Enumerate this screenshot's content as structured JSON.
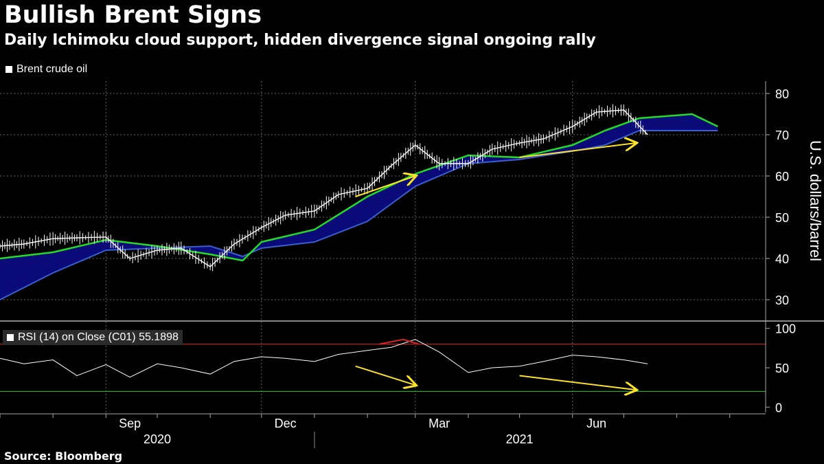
{
  "title": "Bullish Brent Signs",
  "subtitle": "Daily Ichimoku cloud support, hidden divergence signal ongoing rally",
  "source": "Source: Bloomberg",
  "legend_price": "Brent crude oil",
  "legend_rsi": "RSI (14)  on Close (C01) 55.1898",
  "colors": {
    "price": "#ffffff",
    "cloud": "#0a0a78",
    "cloud_edge": "#3a5fd0",
    "lead_line": "#22dd22",
    "arrow": "#ffe22a",
    "rsi_upper": "#dd2222",
    "rsi_lower": "#22cc22",
    "grid": "#666666"
  },
  "chart_data": [
    {
      "type": "line",
      "name": "price-panel",
      "ylabel": "U.S. dollars/barrel",
      "ylim": [
        25,
        83
      ],
      "yticks": [
        "30",
        "40",
        "50",
        "60",
        "70",
        "80"
      ],
      "xticks": [
        "Sep",
        "Dec",
        "Mar",
        "Jun"
      ],
      "year_labels": [
        "2020",
        "2021"
      ],
      "x": [
        "2020-07-01",
        "2020-07-15",
        "2020-08-01",
        "2020-08-15",
        "2020-09-01",
        "2020-09-15",
        "2020-10-01",
        "2020-10-15",
        "2020-11-01",
        "2020-11-15",
        "2020-12-01",
        "2020-12-15",
        "2021-01-01",
        "2021-01-15",
        "2021-02-01",
        "2021-02-15",
        "2021-03-01",
        "2021-03-15",
        "2021-04-01",
        "2021-04-15",
        "2021-05-01",
        "2021-05-15",
        "2021-06-01",
        "2021-06-15",
        "2021-07-01",
        "2021-07-15"
      ],
      "series": [
        {
          "name": "Brent crude oil",
          "values": [
            43.0,
            43.5,
            44.8,
            45.0,
            45.2,
            40.0,
            42.0,
            42.5,
            38.0,
            43.5,
            47.5,
            50.5,
            51.5,
            55.5,
            57.0,
            62.5,
            67.5,
            63.0,
            63.0,
            66.5,
            68.0,
            69.0,
            72.0,
            75.5,
            76.0,
            70.0
          ]
        }
      ],
      "cloud_lead_line": {
        "x": [
          "2020-07-01",
          "2020-08-01",
          "2020-09-01",
          "2020-10-01",
          "2020-11-01",
          "2020-11-20",
          "2020-12-01",
          "2021-01-01",
          "2021-02-01",
          "2021-03-01",
          "2021-04-01",
          "2021-05-01",
          "2021-06-01",
          "2021-06-20",
          "2021-07-10",
          "2021-08-10",
          "2021-08-25"
        ],
        "values": [
          40.0,
          41.5,
          44.5,
          43.0,
          41.0,
          39.5,
          44.0,
          47.0,
          55.0,
          60.5,
          65.0,
          64.5,
          67.5,
          71.0,
          74.0,
          75.0,
          72.0
        ]
      },
      "cloud_base_line": {
        "x": [
          "2020-07-01",
          "2020-08-01",
          "2020-09-01",
          "2020-10-01",
          "2020-11-01",
          "2020-11-20",
          "2020-12-01",
          "2021-01-01",
          "2021-02-01",
          "2021-03-01",
          "2021-04-01",
          "2021-05-01",
          "2021-06-01",
          "2021-06-20",
          "2021-07-10",
          "2021-08-10",
          "2021-08-25"
        ],
        "values": [
          30.0,
          36.5,
          42.0,
          42.5,
          43.0,
          40.5,
          42.5,
          44.0,
          49.0,
          57.5,
          63.0,
          64.0,
          66.0,
          67.5,
          71.0,
          71.0,
          71.0
        ]
      }
    },
    {
      "type": "line",
      "name": "rsi-panel",
      "ylim": [
        -5,
        105
      ],
      "yticks": [
        "0",
        "50",
        "100"
      ],
      "reference_lines": [
        80,
        20
      ],
      "x": [
        "2020-07-01",
        "2020-07-15",
        "2020-08-01",
        "2020-08-15",
        "2020-09-01",
        "2020-09-15",
        "2020-10-01",
        "2020-10-15",
        "2020-11-01",
        "2020-11-15",
        "2020-12-01",
        "2020-12-15",
        "2021-01-01",
        "2021-01-15",
        "2021-02-01",
        "2021-02-15",
        "2021-03-01",
        "2021-03-15",
        "2021-04-01",
        "2021-04-15",
        "2021-05-01",
        "2021-05-15",
        "2021-06-01",
        "2021-06-15",
        "2021-07-01",
        "2021-07-15"
      ],
      "series": [
        {
          "name": "RSI (14)",
          "values": [
            62,
            55,
            60,
            40,
            54,
            38,
            55,
            50,
            42,
            58,
            64,
            62,
            58,
            67,
            72,
            76,
            86,
            70,
            44,
            50,
            52,
            58,
            66,
            64,
            60,
            55
          ]
        }
      ]
    }
  ],
  "annotations": {
    "arrows": [
      {
        "panel": "price",
        "from": [
          "2021-01-25",
          55
        ],
        "to": [
          "2021-03-01",
          60
        ]
      },
      {
        "panel": "price",
        "from": [
          "2021-05-01",
          64.5
        ],
        "to": [
          "2021-07-08",
          68
        ]
      },
      {
        "panel": "rsi",
        "from": [
          "2021-01-25",
          52
        ],
        "to": [
          "2021-03-01",
          28
        ]
      },
      {
        "panel": "rsi",
        "from": [
          "2021-05-01",
          40
        ],
        "to": [
          "2021-07-08",
          22
        ]
      }
    ]
  }
}
